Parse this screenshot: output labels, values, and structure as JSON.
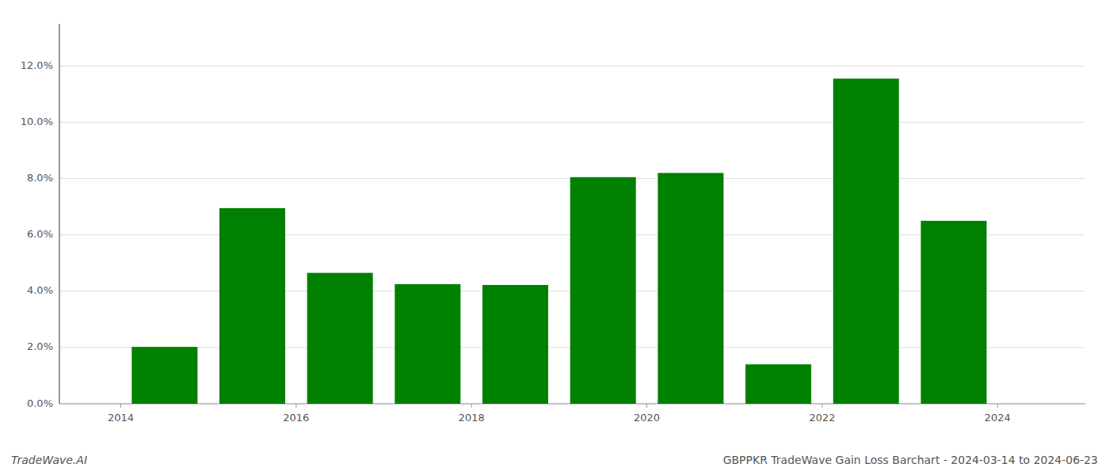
{
  "chart_data": {
    "type": "bar",
    "title": "GBPPKR TradeWave Gain Loss Barchart - 2024-03-14 to 2024-06-23",
    "annotations": [
      "TradeWave.AI"
    ],
    "x": [
      2014,
      2015,
      2016,
      2017,
      2018,
      2019,
      2020,
      2021,
      2022,
      2023
    ],
    "values": [
      0.0202,
      0.0695,
      0.0465,
      0.0425,
      0.0422,
      0.0805,
      0.082,
      0.014,
      0.1155,
      0.065
    ],
    "color": "#008000",
    "xlim": [
      2013.3,
      2025.0
    ],
    "xticks": [
      2014,
      2016,
      2018,
      2020,
      2022,
      2024
    ],
    "ylim": [
      0,
      0.135
    ],
    "yticks": [
      {
        "value": 0.0,
        "label": "0.0%"
      },
      {
        "value": 0.02,
        "label": "2.0%"
      },
      {
        "value": 0.04,
        "label": "4.0%"
      },
      {
        "value": 0.06,
        "label": "6.0%"
      },
      {
        "value": 0.08,
        "label": "8.0%"
      },
      {
        "value": 0.1,
        "label": "10.0%"
      },
      {
        "value": 0.12,
        "label": "12.0%"
      }
    ],
    "grid": true
  }
}
